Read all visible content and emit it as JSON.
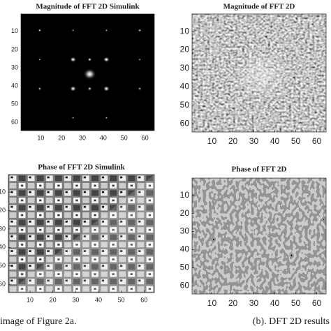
{
  "chart_data": [
    {
      "type": "image",
      "title": "Magnitude of FFT 2D Simulink",
      "xlim": [
        0.5,
        64.5
      ],
      "ylim": [
        0.5,
        64.5
      ],
      "yreverse": true,
      "xticks": [
        10,
        20,
        30,
        40,
        50,
        60
      ],
      "yticks": [
        10,
        20,
        30,
        40,
        50,
        60
      ],
      "colormap": "gray"
    },
    {
      "type": "image",
      "title": "Magnitude of FFT 2D",
      "xlim": [
        0.5,
        64.5
      ],
      "ylim": [
        0.5,
        64.5
      ],
      "yreverse": true,
      "xticks": [
        10,
        20,
        30,
        40,
        50,
        60
      ],
      "yticks": [
        10,
        20,
        30,
        40,
        50,
        60
      ],
      "colormap": "gray"
    },
    {
      "type": "image",
      "title": "Phase of FFT 2D Simulink",
      "xlim": [
        0.5,
        64.5
      ],
      "ylim": [
        0.5,
        64.5
      ],
      "yreverse": true,
      "xticks": [
        10,
        20,
        30,
        40,
        50,
        60
      ],
      "yticks": [
        10,
        20,
        30,
        40,
        50,
        60
      ],
      "colormap": "gray"
    },
    {
      "type": "image",
      "title": "Phase of FFT 2D",
      "xlim": [
        0.5,
        64.5
      ],
      "ylim": [
        0.5,
        64.5
      ],
      "yreverse": true,
      "xticks": [
        10,
        20,
        30,
        40,
        50,
        60
      ],
      "yticks": [
        10,
        20,
        30,
        40,
        50,
        60
      ],
      "colormap": "gray"
    }
  ],
  "captions": {
    "left": "image of Figure 2a.",
    "right": "(b). DFT 2D results"
  }
}
